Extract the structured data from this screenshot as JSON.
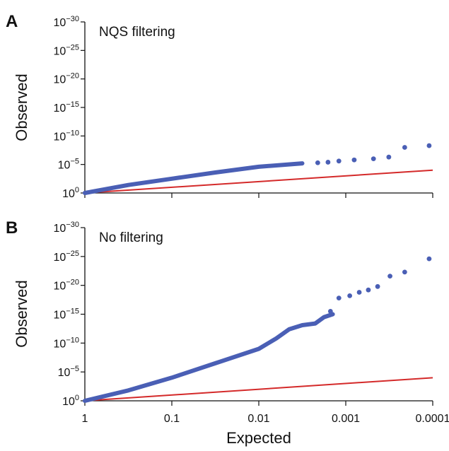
{
  "chart_data": [
    {
      "type": "scatter",
      "panel_label": "A",
      "annotation": "NQS filtering",
      "xlabel": "",
      "ylabel": "Observed",
      "x_scale": "log_reversed",
      "y_scale": "-log10",
      "xlim": [
        1,
        0.0001
      ],
      "ylim": [
        0,
        30
      ],
      "x_ticks": [
        "1",
        "0.1",
        "0.01",
        "0.001",
        "0.0001"
      ],
      "x_tick_values": [
        1,
        0.1,
        0.01,
        0.001,
        0.0001
      ],
      "y_ticks": [
        {
          "value": 0,
          "base": "10",
          "exp": "0"
        },
        {
          "value": 5,
          "base": "10",
          "exp": "−5"
        },
        {
          "value": 10,
          "base": "10",
          "exp": "−10"
        },
        {
          "value": 15,
          "base": "10",
          "exp": "−15"
        },
        {
          "value": 20,
          "base": "10",
          "exp": "−20"
        },
        {
          "value": 25,
          "base": "10",
          "exp": "−25"
        },
        {
          "value": 30,
          "base": "10",
          "exp": "−30"
        }
      ],
      "grid": false,
      "colors": {
        "points": "#4a5fb5",
        "line": "#d42a2a"
      },
      "expected_line": {
        "x": [
          1,
          0.0001
        ],
        "y": [
          0,
          4
        ]
      },
      "curve": {
        "x_exp": [
          0,
          0.5,
          1,
          1.5,
          2,
          2.5
        ],
        "y": [
          0,
          1.4,
          2.5,
          3.6,
          4.6,
          5.2
        ]
      },
      "points": [
        {
          "x": 0.0021,
          "y": 5.3
        },
        {
          "x": 0.0016,
          "y": 5.4
        },
        {
          "x": 0.0012,
          "y": 5.6
        },
        {
          "x": 0.0008,
          "y": 5.8
        },
        {
          "x": 0.00048,
          "y": 6.0
        },
        {
          "x": 0.00032,
          "y": 6.3
        },
        {
          "x": 0.00021,
          "y": 8.0
        },
        {
          "x": 0.00011,
          "y": 8.3
        }
      ]
    },
    {
      "type": "scatter",
      "panel_label": "B",
      "annotation": "No filtering",
      "xlabel": "Expected",
      "ylabel": "Observed",
      "x_scale": "log_reversed",
      "y_scale": "-log10",
      "xlim": [
        1,
        0.0001
      ],
      "ylim": [
        0,
        30
      ],
      "x_ticks": [
        "1",
        "0.1",
        "0.01",
        "0.001",
        "0.0001"
      ],
      "x_tick_values": [
        1,
        0.1,
        0.01,
        0.001,
        0.0001
      ],
      "y_ticks": [
        {
          "value": 0,
          "base": "10",
          "exp": "0"
        },
        {
          "value": 5,
          "base": "10",
          "exp": "−5"
        },
        {
          "value": 10,
          "base": "10",
          "exp": "−10"
        },
        {
          "value": 15,
          "base": "10",
          "exp": "−15"
        },
        {
          "value": 20,
          "base": "10",
          "exp": "−20"
        },
        {
          "value": 25,
          "base": "10",
          "exp": "−25"
        },
        {
          "value": 30,
          "base": "10",
          "exp": "−30"
        }
      ],
      "grid": false,
      "colors": {
        "points": "#4a5fb5",
        "line": "#d42a2a"
      },
      "expected_line": {
        "x": [
          1,
          0.0001
        ],
        "y": [
          0,
          4
        ]
      },
      "curve": {
        "x_exp": [
          0,
          0.5,
          1,
          1.5,
          2,
          2.2,
          2.35,
          2.5,
          2.65,
          2.75,
          2.85
        ],
        "y": [
          0,
          1.8,
          4.0,
          6.5,
          9.0,
          10.8,
          12.4,
          13.1,
          13.4,
          14.5,
          15.0
        ]
      },
      "points": [
        {
          "x": 0.0015,
          "y": 15.5
        },
        {
          "x": 0.0012,
          "y": 17.8
        },
        {
          "x": 0.0009,
          "y": 18.2
        },
        {
          "x": 0.0007,
          "y": 18.8
        },
        {
          "x": 0.00055,
          "y": 19.2
        },
        {
          "x": 0.00043,
          "y": 19.8
        },
        {
          "x": 0.00031,
          "y": 21.6
        },
        {
          "x": 0.00021,
          "y": 22.3
        },
        {
          "x": 0.00011,
          "y": 24.6
        }
      ]
    }
  ]
}
